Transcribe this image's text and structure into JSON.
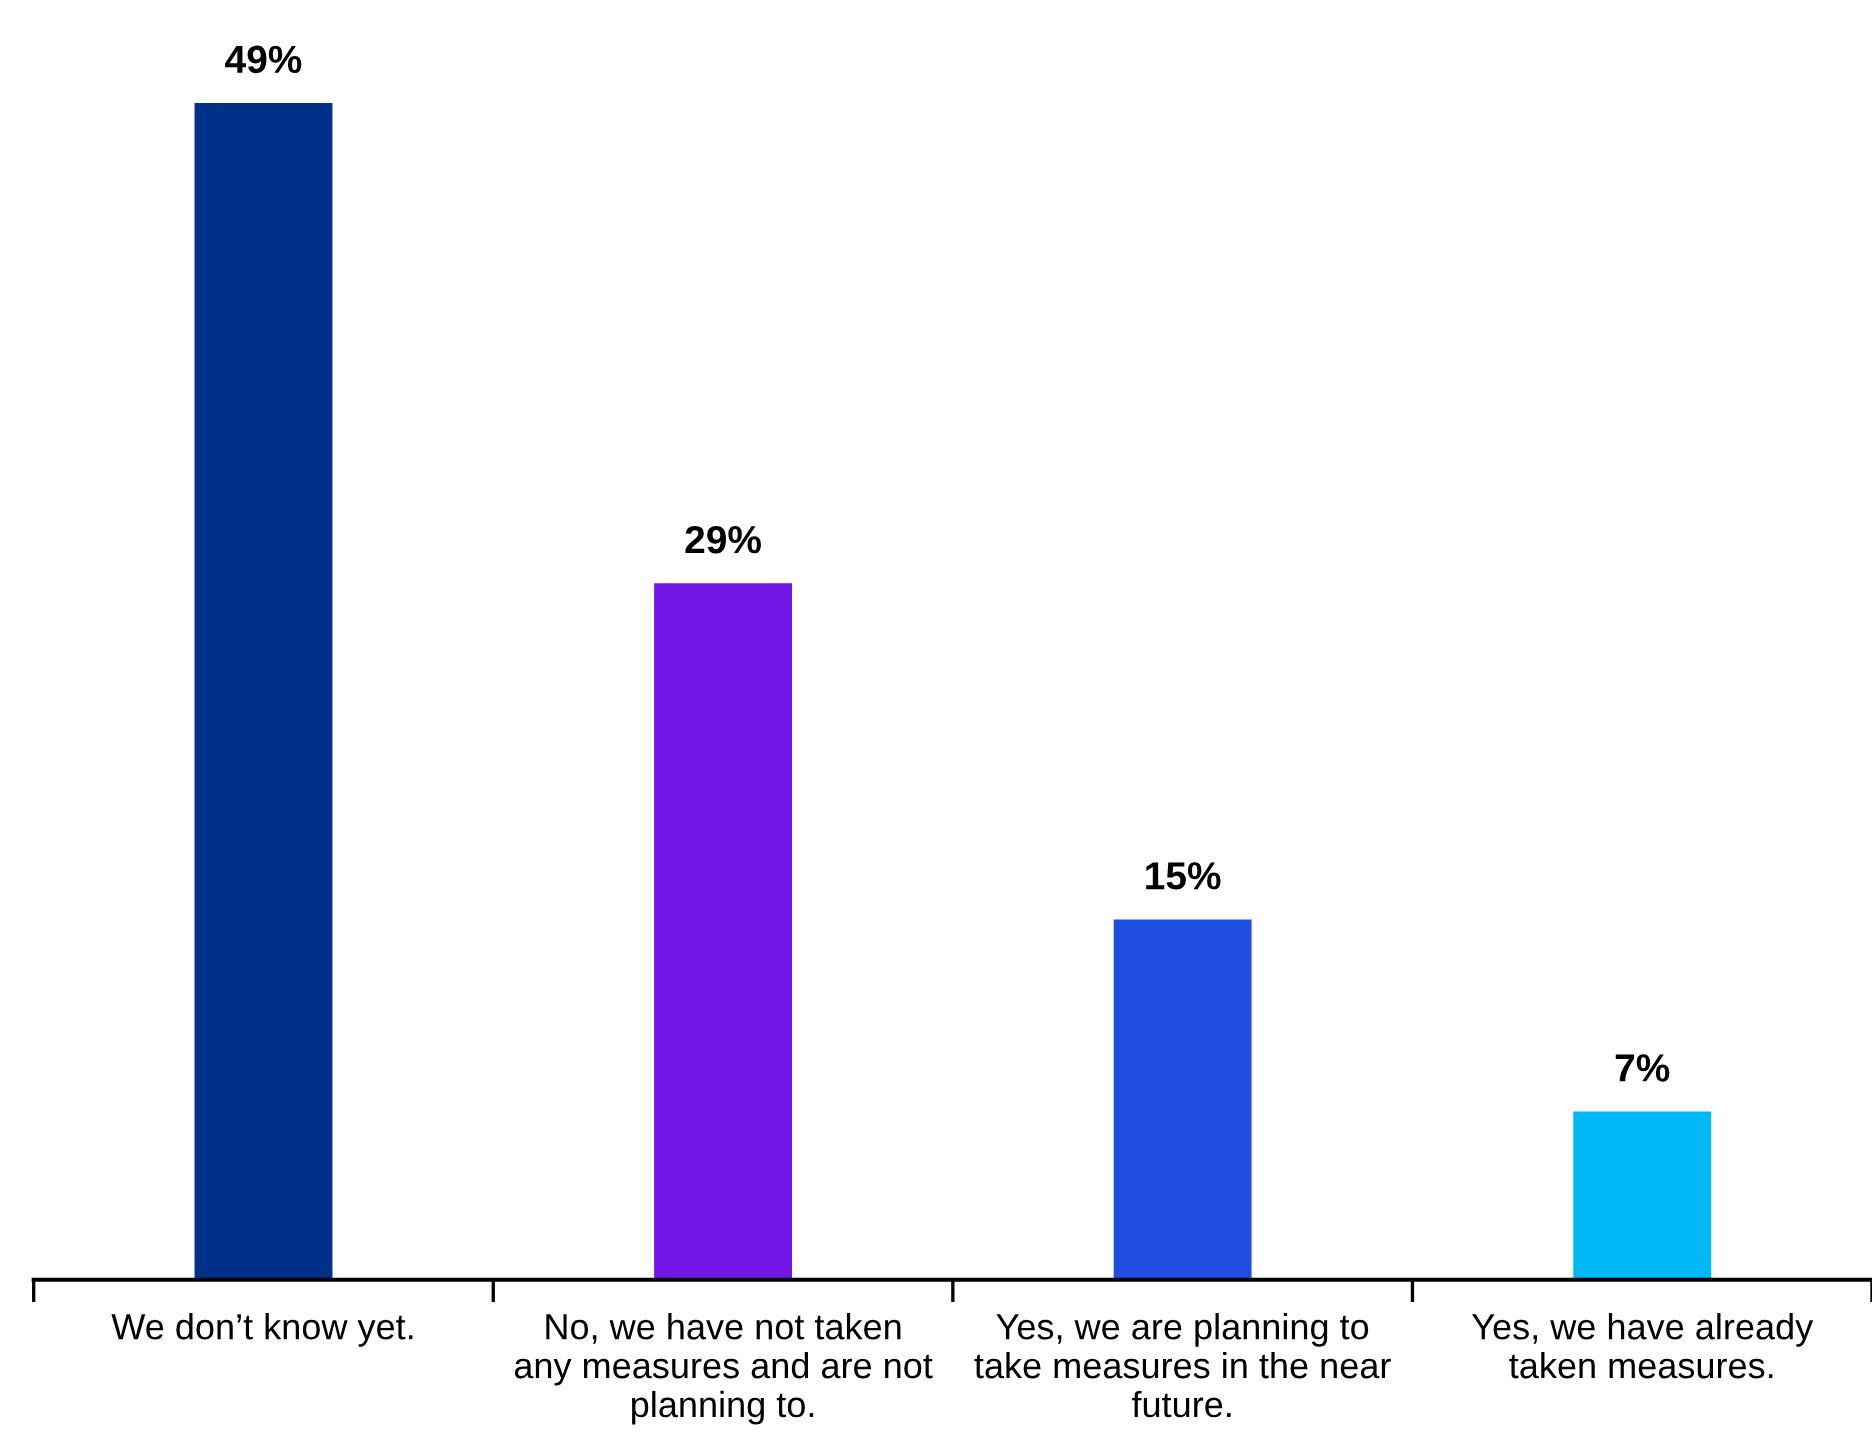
{
  "chart_data": {
    "type": "bar",
    "categories": [
      "We don’t know yet.",
      "No, we have not taken\nany measures and are not\nplanning to.",
      "Yes, we are planning to\ntake measures in the near\nfuture.",
      "Yes, we have already\ntaken measures."
    ],
    "values": [
      49,
      29,
      15,
      7
    ],
    "colors": [
      "#003087",
      "#7216e8",
      "#1f4ee0",
      "#00b8f5"
    ],
    "value_labels": [
      "49%",
      "29%",
      "15%",
      "7%"
    ],
    "grid": false,
    "legend": false
  }
}
